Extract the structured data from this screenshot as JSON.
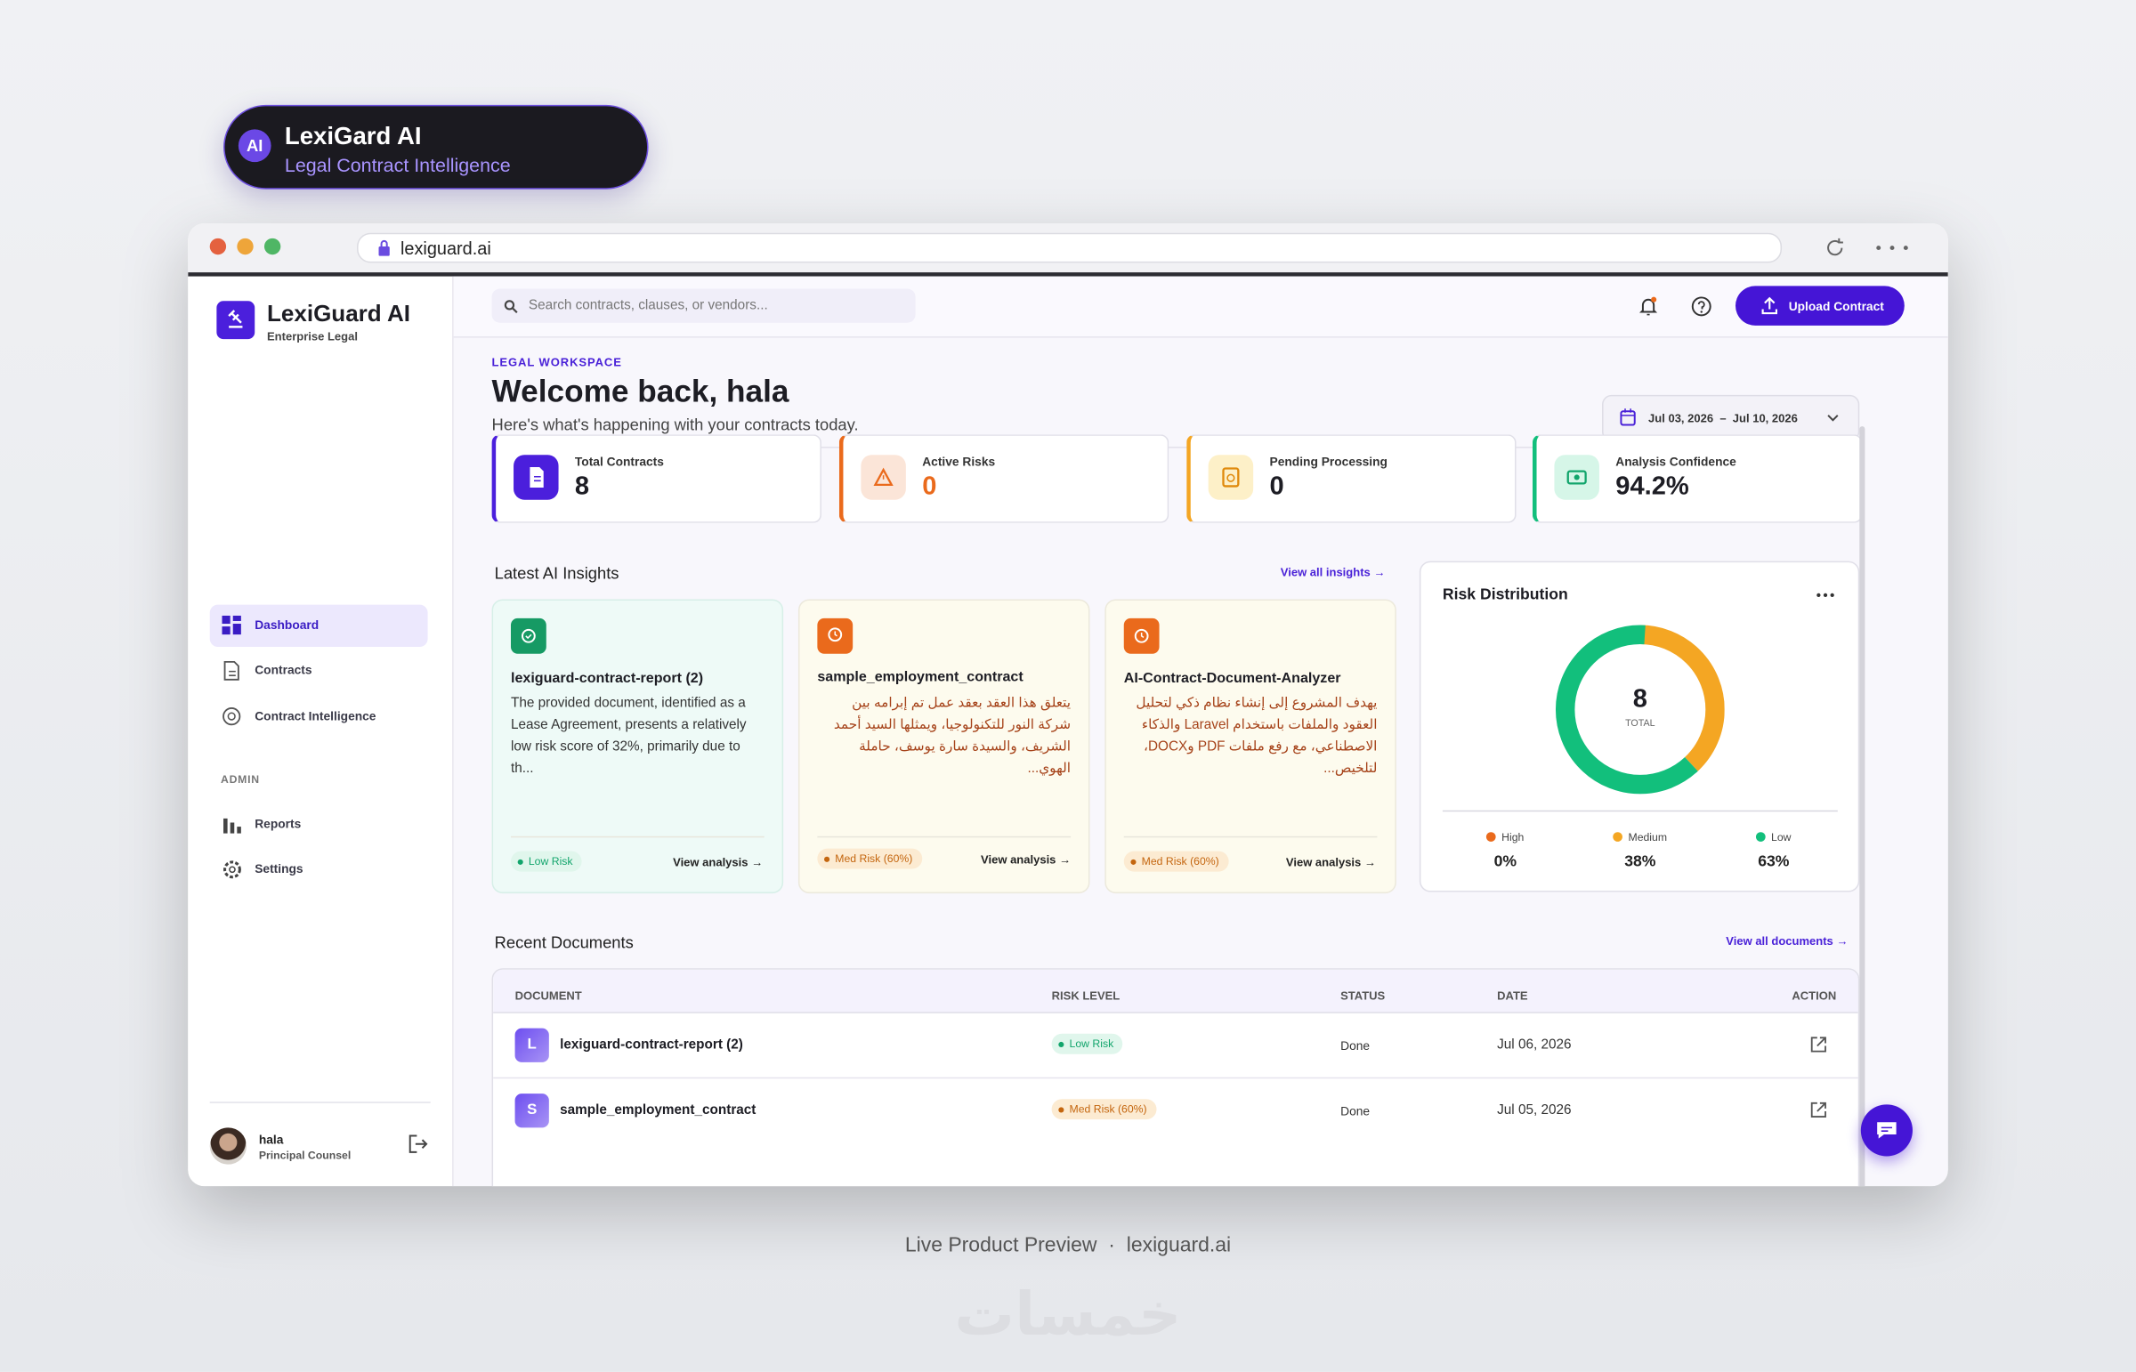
{
  "badge": {
    "logo": "AI",
    "title": "LexiGard AI",
    "subtitle": "Legal Contract Intelligence"
  },
  "browser": {
    "url": "lexiguard.ai"
  },
  "sidebar": {
    "brand": "LexiGuard AI",
    "tagline": "Enterprise Legal",
    "nav": [
      "Dashboard",
      "Contracts",
      "Contract Intelligence"
    ],
    "admin_heading": "ADMIN",
    "admin_nav": [
      "Reports",
      "Settings"
    ],
    "user": {
      "name": "hala",
      "role": "Principal Counsel"
    }
  },
  "topbar": {
    "search_placeholder": "Search contracts, clauses, or vendors...",
    "upload_button": "Upload Contract"
  },
  "header": {
    "eyebrow": "LEGAL WORKSPACE",
    "title": "Welcome back, hala",
    "subtitle": "Here's what's happening with your contracts today.",
    "date_range": "Jul 03, 2026  –  Jul 10, 2026"
  },
  "stats": [
    {
      "label": "Total Contracts",
      "value": "8"
    },
    {
      "label": "Active Risks",
      "value": "0"
    },
    {
      "label": "Pending Processing",
      "value": "0"
    },
    {
      "label": "Analysis Confidence",
      "value": "94.2%"
    }
  ],
  "insights": {
    "heading": "Latest AI Insights",
    "view_all": "View all insights",
    "cards": [
      {
        "title": "lexiguard-contract-report (2)",
        "body": "The provided document, identified as a Lease Agreement, presents a relatively low risk score of 32%, primarily due to th...",
        "risk": "Low Risk",
        "action": "View analysis"
      },
      {
        "title": "sample_employment_contract",
        "body": "يتعلق هذا العقد بعقد عمل تم إبرامه بين شركة النور للتكنولوجيا، ويمثلها السيد أحمد الشريف، والسيدة سارة يوسف، حاملة الهوي...",
        "risk": "Med Risk (60%)",
        "action": "View analysis"
      },
      {
        "title": "AI-Contract-Document-Analyzer",
        "body": "يهدف المشروع إلى إنشاء نظام ذكي لتحليل العقود والملفات باستخدام Laravel والذكاء الاصطناعي، مع رفع ملفات PDF وDOCX، لتلخيص...",
        "risk": "Med Risk (60%)",
        "action": "View analysis"
      }
    ]
  },
  "risk_distribution": {
    "title": "Risk Distribution",
    "total": "8",
    "total_label": "TOTAL",
    "segments": [
      {
        "name": "High",
        "color": "#ea6a1c",
        "value": 0,
        "value_label": "0%"
      },
      {
        "name": "Medium",
        "color": "#f4a623",
        "value": 38,
        "value_label": "38%"
      },
      {
        "name": "Low",
        "color": "#12bf7c",
        "value": 63,
        "value_label": "63%"
      }
    ]
  },
  "recent_documents": {
    "heading": "Recent Documents",
    "view_all": "View all documents",
    "columns": [
      "DOCUMENT",
      "RISK LEVEL",
      "STATUS",
      "DATE",
      "ACTION"
    ],
    "rows": [
      {
        "initial": "L",
        "name": "lexiguard-contract-report (2)",
        "risk": "Low Risk",
        "status": "Done",
        "date": "Jul 06, 2026"
      },
      {
        "initial": "S",
        "name": "sample_employment_contract",
        "risk": "Med Risk (60%)",
        "status": "Done",
        "date": "Jul 05, 2026"
      }
    ]
  },
  "footer": {
    "caption": "Live Product Preview",
    "separator": "·",
    "url": "lexiguard.ai",
    "watermark": "خمسات"
  }
}
